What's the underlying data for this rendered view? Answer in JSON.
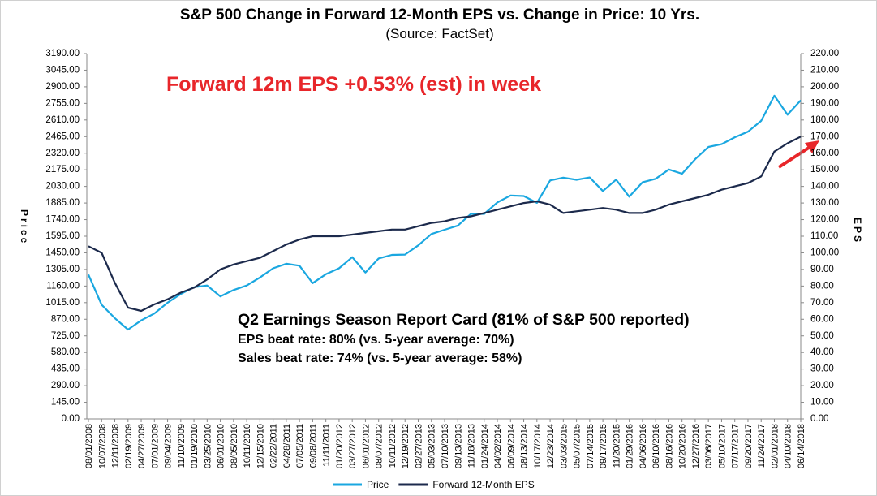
{
  "chart_data": {
    "type": "line",
    "title": "S&P 500 Change in Forward 12-Month EPS vs. Change in Price: 10 Yrs.",
    "subtitle": "(Source: FactSet)",
    "y_label": "Price",
    "y2_label": "EPS",
    "annotations": [
      "Forward 12m EPS +0.53% (est) in week",
      "Q2 Earnings Season Report Card (81% of S&P 500 reported)",
      "EPS beat rate: 80% (vs. 5-year average: 70%)",
      "Sales beat rate: 74% (vs. 5-year average: 58%)"
    ],
    "categories": [
      "08/01/2008",
      "10/07/2008",
      "12/11/2008",
      "02/19/2009",
      "04/27/2009",
      "07/01/2009",
      "09/04/2009",
      "11/10/2009",
      "01/19/2010",
      "03/25/2010",
      "06/01/2010",
      "08/05/2010",
      "10/11/2010",
      "12/15/2010",
      "02/22/2011",
      "04/28/2011",
      "07/05/2011",
      "09/08/2011",
      "11/11/2011",
      "01/20/2012",
      "03/27/2012",
      "06/01/2012",
      "08/07/2012",
      "10/11/2012",
      "12/19/2012",
      "02/27/2013",
      "05/03/2013",
      "07/10/2013",
      "09/13/2013",
      "11/18/2013",
      "01/24/2014",
      "04/02/2014",
      "06/09/2014",
      "08/13/2014",
      "10/17/2014",
      "12/23/2014",
      "03/03/2015",
      "05/07/2015",
      "07/14/2015",
      "09/17/2015",
      "11/20/2015",
      "01/29/2016",
      "04/06/2016",
      "06/10/2016",
      "08/16/2016",
      "10/20/2016",
      "12/27/2016",
      "03/06/2017",
      "05/10/2017",
      "07/17/2017",
      "09/20/2017",
      "11/24/2017",
      "02/01/2018",
      "04/10/2018",
      "06/14/2018"
    ],
    "series": [
      {
        "name": "Price",
        "color": "#1aa7e0",
        "values": [
          1260,
          996,
          880,
          780,
          860,
          920,
          1015,
          1090,
          1150,
          1165,
          1070,
          1125,
          1165,
          1235,
          1315,
          1355,
          1338,
          1185,
          1263,
          1315,
          1412,
          1278,
          1401,
          1432,
          1435,
          1515,
          1614,
          1652,
          1688,
          1791,
          1790,
          1890,
          1951,
          1946,
          1886,
          2082,
          2107,
          2088,
          2108,
          1990,
          2089,
          1940,
          2066,
          2096,
          2178,
          2141,
          2268,
          2375,
          2399,
          2459,
          2508,
          2602,
          2822,
          2656,
          2782
        ]
      },
      {
        "name": "Forward 12-Month EPS",
        "color": "#1c2a4c",
        "axis": "y2",
        "values": [
          104,
          100,
          82,
          67,
          65,
          69,
          72,
          76,
          79,
          84,
          90,
          93,
          95,
          97,
          101,
          105,
          108,
          110,
          110,
          110,
          111,
          112,
          113,
          114,
          114,
          116,
          118,
          119,
          121,
          122,
          124,
          126,
          128,
          130,
          131,
          129,
          124,
          125,
          126,
          127,
          126,
          124,
          124,
          126,
          129,
          131,
          133,
          135,
          138,
          140,
          142,
          146,
          161,
          166,
          170
        ]
      }
    ],
    "ylim": [
      0,
      3190
    ],
    "yticks": [
      {
        "value": 0,
        "label": "0.00"
      },
      {
        "value": 145,
        "label": "145.00"
      },
      {
        "value": 290,
        "label": "290.00"
      },
      {
        "value": 435,
        "label": "435.00"
      },
      {
        "value": 580,
        "label": "580.00"
      },
      {
        "value": 725,
        "label": "725.00"
      },
      {
        "value": 870,
        "label": "870.00"
      },
      {
        "value": 1015,
        "label": "1015.00"
      },
      {
        "value": 1160,
        "label": "1160.00"
      },
      {
        "value": 1305,
        "label": "1305.00"
      },
      {
        "value": 1450,
        "label": "1450.00"
      },
      {
        "value": 1595,
        "label": "1595.00"
      },
      {
        "value": 1740,
        "label": "1740.00"
      },
      {
        "value": 1885,
        "label": "1885.00"
      },
      {
        "value": 2030,
        "label": "2030.00"
      },
      {
        "value": 2175,
        "label": "2175.00"
      },
      {
        "value": 2320,
        "label": "2320.00"
      },
      {
        "value": 2465,
        "label": "2465.00"
      },
      {
        "value": 2610,
        "label": "2610.00"
      },
      {
        "value": 2755,
        "label": "2755.00"
      },
      {
        "value": 2900,
        "label": "2900.00"
      },
      {
        "value": 3045,
        "label": "3045.00"
      },
      {
        "value": 3190,
        "label": "3190.00"
      }
    ],
    "y2lim": [
      0,
      220
    ],
    "y2ticks": [
      {
        "value": 0,
        "label": "0.00"
      },
      {
        "value": 10,
        "label": "10.00"
      },
      {
        "value": 20,
        "label": "20.00"
      },
      {
        "value": 30,
        "label": "30.00"
      },
      {
        "value": 40,
        "label": "40.00"
      },
      {
        "value": 50,
        "label": "50.00"
      },
      {
        "value": 60,
        "label": "60.00"
      },
      {
        "value": 70,
        "label": "70.00"
      },
      {
        "value": 80,
        "label": "80.00"
      },
      {
        "value": 90,
        "label": "90.00"
      },
      {
        "value": 100,
        "label": "100.00"
      },
      {
        "value": 110,
        "label": "110.00"
      },
      {
        "value": 120,
        "label": "120.00"
      },
      {
        "value": 130,
        "label": "130.00"
      },
      {
        "value": 140,
        "label": "140.00"
      },
      {
        "value": 150,
        "label": "150.00"
      },
      {
        "value": 160,
        "label": "160.00"
      },
      {
        "value": 170,
        "label": "170.00"
      },
      {
        "value": 180,
        "label": "180.00"
      },
      {
        "value": 190,
        "label": "190.00"
      },
      {
        "value": 200,
        "label": "200.00"
      },
      {
        "value": 210,
        "label": "210.00"
      },
      {
        "value": 220,
        "label": "220.00"
      }
    ],
    "grid": false,
    "legend": "bottom"
  }
}
